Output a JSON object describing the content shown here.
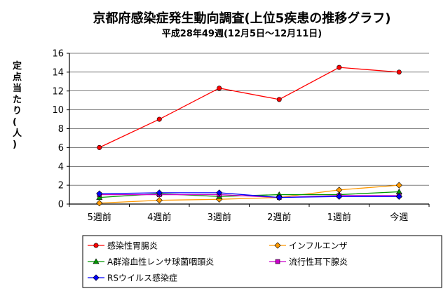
{
  "chart_data": {
    "type": "line",
    "title": "京都府感染症発生動向調査(上位5疾患の推移グラフ)",
    "subtitle": "平成28年49週(12月5日〜12月11日)",
    "ylabel": "定点当たり(人)",
    "xlabel": "",
    "categories": [
      "5週前",
      "4週前",
      "3週前",
      "2週前",
      "1週前",
      "今週"
    ],
    "ylim": [
      0,
      16
    ],
    "yticks": [
      "0",
      "2",
      "4",
      "6",
      "8",
      "10",
      "12",
      "14",
      "16"
    ],
    "grid": true,
    "legend_position": "bottom",
    "series": [
      {
        "name": "感染性胃腸炎",
        "color": "#ff0000",
        "marker": "circle",
        "values": [
          6.0,
          9.0,
          12.3,
          11.1,
          14.5,
          14.0
        ]
      },
      {
        "name": "インフルエンザ",
        "color": "#ff9900",
        "marker": "diamond",
        "values": [
          0.1,
          0.4,
          0.5,
          0.7,
          1.5,
          2.0
        ]
      },
      {
        "name": "A群溶血性レンサ球菌咽頭炎",
        "color": "#009900",
        "marker": "triangle",
        "values": [
          0.7,
          1.1,
          0.8,
          1.0,
          1.0,
          1.3
        ]
      },
      {
        "name": "流行性耳下腺炎",
        "color": "#cc00cc",
        "marker": "square",
        "values": [
          1.0,
          1.0,
          1.0,
          0.7,
          0.9,
          0.9
        ]
      },
      {
        "name": "RSウイルス感染症",
        "color": "#0000ff",
        "marker": "diamond",
        "values": [
          1.1,
          1.2,
          1.2,
          0.7,
          0.8,
          0.8
        ]
      }
    ]
  }
}
